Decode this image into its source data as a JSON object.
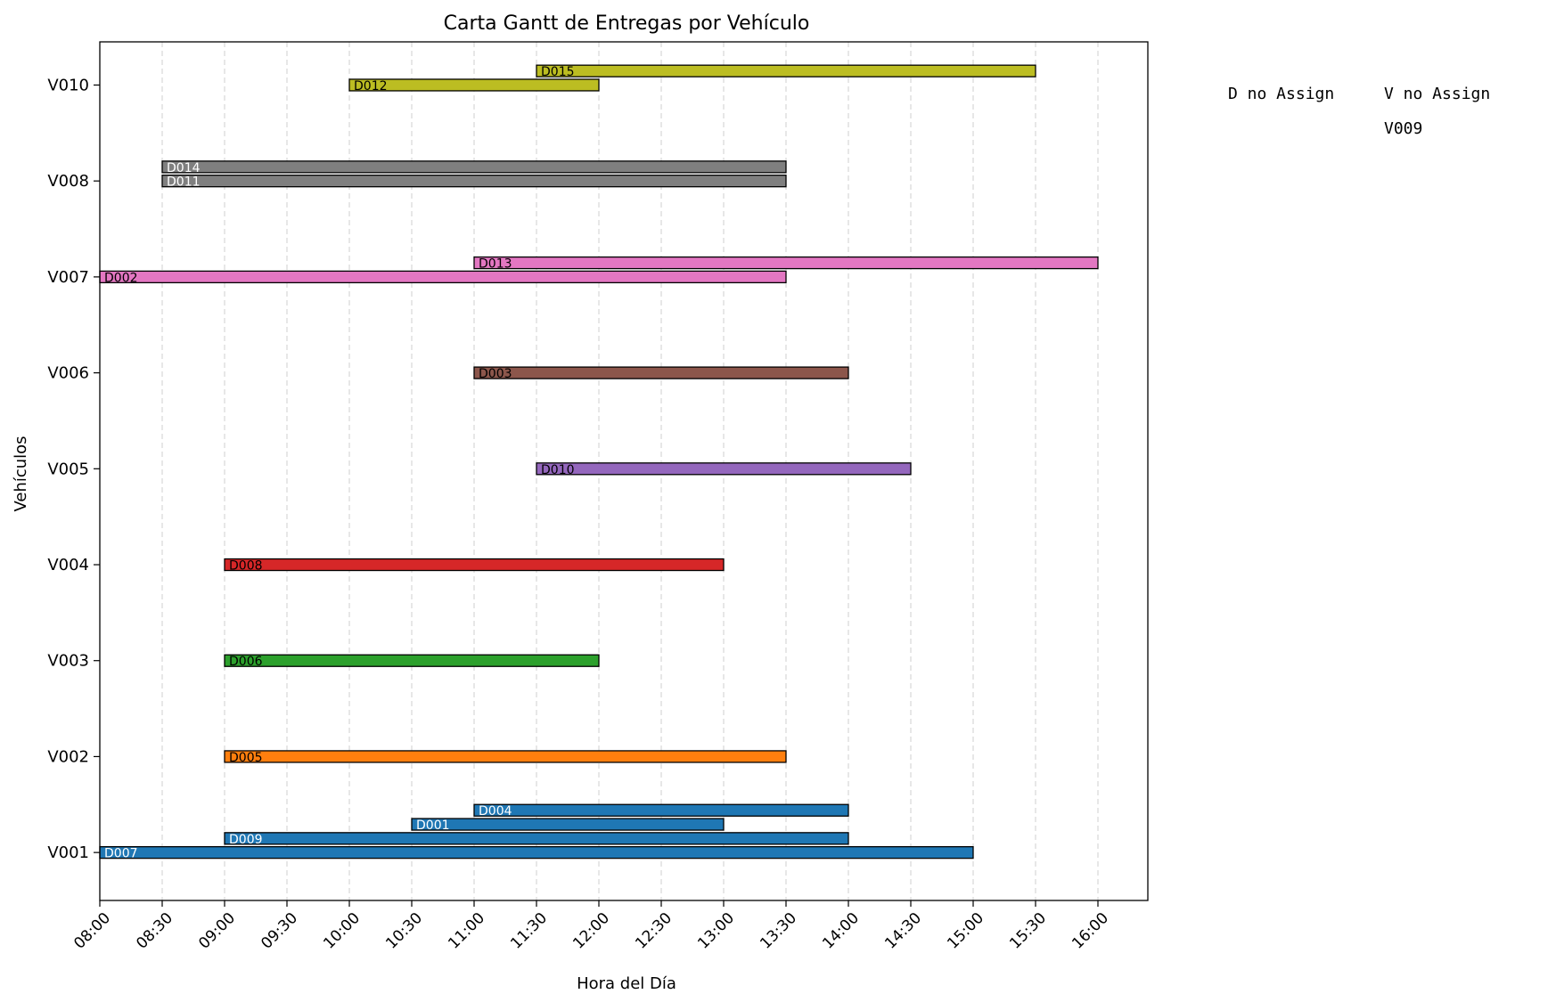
{
  "chart_data": {
    "type": "gantt",
    "title": "Carta Gantt de Entregas por Vehículo",
    "xlabel": "Hora del Día",
    "ylabel": "Vehículos",
    "x_ticks": [
      "08:00",
      "08:30",
      "09:00",
      "09:30",
      "10:00",
      "10:30",
      "11:00",
      "11:30",
      "12:00",
      "12:30",
      "13:00",
      "13:30",
      "14:00",
      "14:30",
      "15:00",
      "15:30",
      "16:00"
    ],
    "xlim": [
      "08:00",
      "16:24"
    ],
    "y_categories": [
      "V001",
      "V002",
      "V003",
      "V004",
      "V005",
      "V006",
      "V007",
      "V008",
      "V010"
    ],
    "grid": "x, dashed",
    "colors": {
      "V001": "#1f77b4",
      "V002": "#ff7f0e",
      "V003": "#2ca02c",
      "V004": "#d62728",
      "V005": "#9467bd",
      "V006": "#8c564b",
      "V007": "#e377c2",
      "V008": "#7f7f7f",
      "V010": "#bcbd22"
    },
    "tasks": [
      {
        "vehicle": "V001",
        "delivery": "D007",
        "start": "08:00",
        "end": "15:00",
        "label_color": "#ffffff"
      },
      {
        "vehicle": "V001",
        "delivery": "D009",
        "start": "09:00",
        "end": "14:00",
        "label_color": "#ffffff"
      },
      {
        "vehicle": "V001",
        "delivery": "D001",
        "start": "10:30",
        "end": "13:00",
        "label_color": "#ffffff"
      },
      {
        "vehicle": "V001",
        "delivery": "D004",
        "start": "11:00",
        "end": "14:00",
        "label_color": "#ffffff"
      },
      {
        "vehicle": "V002",
        "delivery": "D005",
        "start": "09:00",
        "end": "13:30",
        "label_color": "#000000"
      },
      {
        "vehicle": "V003",
        "delivery": "D006",
        "start": "09:00",
        "end": "12:00",
        "label_color": "#000000"
      },
      {
        "vehicle": "V004",
        "delivery": "D008",
        "start": "09:00",
        "end": "13:00",
        "label_color": "#000000"
      },
      {
        "vehicle": "V005",
        "delivery": "D010",
        "start": "11:30",
        "end": "14:30",
        "label_color": "#000000"
      },
      {
        "vehicle": "V006",
        "delivery": "D003",
        "start": "11:00",
        "end": "14:00",
        "label_color": "#000000"
      },
      {
        "vehicle": "V007",
        "delivery": "D002",
        "start": "08:00",
        "end": "13:30",
        "label_color": "#000000"
      },
      {
        "vehicle": "V007",
        "delivery": "D013",
        "start": "11:00",
        "end": "16:00",
        "label_color": "#000000"
      },
      {
        "vehicle": "V008",
        "delivery": "D011",
        "start": "08:30",
        "end": "13:30",
        "label_color": "#ffffff"
      },
      {
        "vehicle": "V008",
        "delivery": "D014",
        "start": "08:30",
        "end": "13:30",
        "label_color": "#ffffff"
      },
      {
        "vehicle": "V010",
        "delivery": "D012",
        "start": "10:00",
        "end": "12:00",
        "label_color": "#000000"
      },
      {
        "vehicle": "V010",
        "delivery": "D015",
        "start": "11:30",
        "end": "15:30",
        "label_color": "#000000"
      }
    ],
    "side_table": {
      "columns": [
        "D no Assign",
        "V no Assign"
      ],
      "rows": [
        [
          "",
          "V009"
        ]
      ]
    }
  }
}
